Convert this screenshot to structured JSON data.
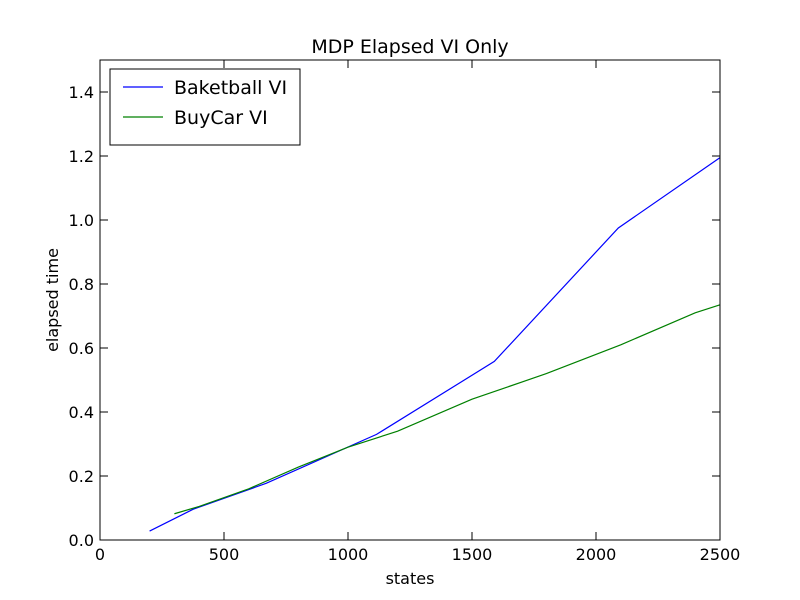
{
  "chart_data": {
    "type": "line",
    "title": "MDP Elapsed VI Only",
    "xlabel": "states",
    "ylabel": "elapsed time",
    "xlim": [
      0,
      2500
    ],
    "ylim": [
      0,
      1.5
    ],
    "xticks": [
      0,
      500,
      1000,
      1500,
      2000,
      2500
    ],
    "xtick_labels": [
      "0",
      "500",
      "1000",
      "1500",
      "2000",
      "2500"
    ],
    "yticks": [
      0.0,
      0.2,
      0.4,
      0.6,
      0.8,
      1.0,
      1.2,
      1.4
    ],
    "ytick_labels": [
      "0.0",
      "0.2",
      "0.4",
      "0.6",
      "0.8",
      "1.0",
      "1.2",
      "1.4"
    ],
    "grid": false,
    "legend_position": "top-left",
    "series": [
      {
        "name": "Baketball VI",
        "color": "#0000ff",
        "x": [
          200,
          375,
          670,
          1115,
          1590,
          2090,
          2500
        ],
        "y": [
          0.028,
          0.096,
          0.177,
          0.33,
          0.558,
          0.975,
          1.195
        ]
      },
      {
        "name": "BuyCar VI",
        "color": "#008000",
        "x": [
          300,
          400,
          600,
          800,
          1000,
          1200,
          1500,
          1800,
          2100,
          2400,
          2500
        ],
        "y": [
          0.082,
          0.105,
          0.16,
          0.228,
          0.29,
          0.34,
          0.44,
          0.52,
          0.61,
          0.71,
          0.735
        ]
      }
    ]
  }
}
